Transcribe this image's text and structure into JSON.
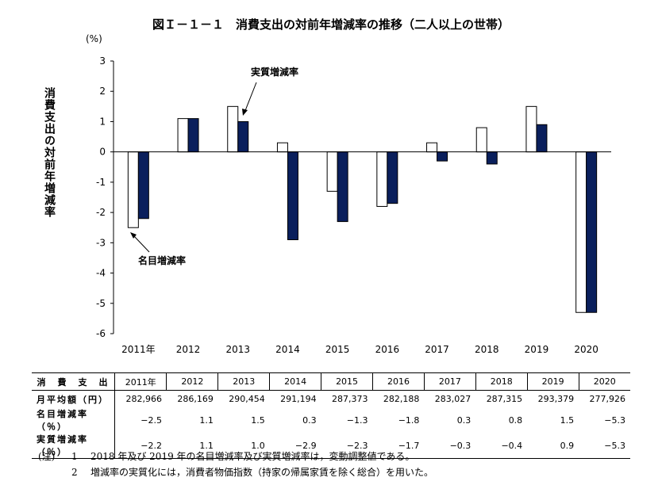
{
  "title": "図Ｉ－１－１　消費支出の対前年増減率の推移（二人以上の世帯）",
  "unit": "(%)",
  "y_axis_label": "消費支出の対前年増減率",
  "annotations": {
    "real": "実質増減率",
    "nominal": "名目増減率"
  },
  "colors": {
    "nominal": "#ffffff",
    "real": "#0a1f5c"
  },
  "chart_data": {
    "type": "bar",
    "categories": [
      "2011年",
      "2012",
      "2013",
      "2014",
      "2015",
      "2016",
      "2017",
      "2018",
      "2019",
      "2020"
    ],
    "series": [
      {
        "name": "名目増減率",
        "values": [
          -2.5,
          1.1,
          1.5,
          0.3,
          -1.3,
          -1.8,
          0.3,
          0.8,
          1.5,
          -5.3
        ]
      },
      {
        "name": "実質増減率",
        "values": [
          -2.2,
          1.1,
          1.0,
          -2.9,
          -2.3,
          -1.7,
          -0.3,
          -0.4,
          0.9,
          -5.3
        ]
      }
    ],
    "ylim": [
      -6,
      3
    ],
    "yticks": [
      "3",
      "2",
      "1",
      "0",
      "-1",
      "-2",
      "-3",
      "-4",
      "-5",
      "-6"
    ],
    "grid": false
  },
  "table": {
    "header_label": "消　費　支　出",
    "years": [
      "2011年",
      "2012",
      "2013",
      "2014",
      "2015",
      "2016",
      "2017",
      "2018",
      "2019",
      "2020"
    ],
    "rows": [
      {
        "label": "月平均額（円）",
        "values": [
          "282,966",
          "286,169",
          "290,454",
          "291,194",
          "287,373",
          "282,188",
          "283,027",
          "287,315",
          "293,379",
          "277,926"
        ]
      },
      {
        "label": "名目増減率（％）",
        "values": [
          "−2.5",
          "1.1",
          "1.5",
          "0.3",
          "−1.3",
          "−1.8",
          "0.3",
          "0.8",
          "1.5",
          "−5.3"
        ]
      },
      {
        "label": "実質増減率（％）",
        "values": [
          "−2.2",
          "1.1",
          "1.0",
          "−2.9",
          "−2.3",
          "−1.7",
          "−0.3",
          "−0.4",
          "0.9",
          "−5.3"
        ]
      }
    ]
  },
  "notes": {
    "prefix": "(注)",
    "items": [
      {
        "num": "1",
        "text": "2018 年及び 2019 年の名目増減率及び実質増減率は，変動調整値である。"
      },
      {
        "num": "2",
        "text": "増減率の実質化には，消費者物価指数（持家の帰属家賃を除く総合）を用いた。"
      }
    ]
  }
}
